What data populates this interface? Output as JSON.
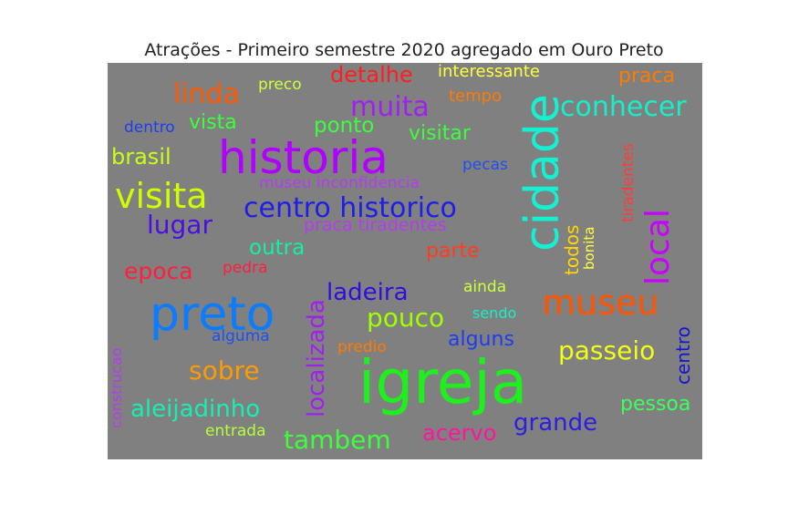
{
  "chart_data": {
    "type": "wordcloud",
    "title": "Atrações - Primeiro semestre 2020 agregado em Ouro Preto",
    "background_color": "#808080",
    "words": [
      {
        "text": "igreja",
        "color": "#1ef01e"
      },
      {
        "text": "historia",
        "color": "#b000ff"
      },
      {
        "text": "preto",
        "color": "#0a7cff"
      },
      {
        "text": "cidade",
        "color": "#14f0d2"
      },
      {
        "text": "visita",
        "color": "#ccff00"
      },
      {
        "text": "museu",
        "color": "#ff5500"
      },
      {
        "text": "centro historico",
        "color": "#1e1ee8"
      },
      {
        "text": "local",
        "color": "#c800ff"
      },
      {
        "text": "localizada",
        "color": "#a020f0"
      },
      {
        "text": "lugar",
        "color": "#4a10e0"
      },
      {
        "text": "linda",
        "color": "#ff5a00"
      },
      {
        "text": "muita",
        "color": "#a020f0"
      },
      {
        "text": "conhecer",
        "color": "#14f0c8"
      },
      {
        "text": "passeio",
        "color": "#f0ff14"
      },
      {
        "text": "tambem",
        "color": "#3cff3c"
      },
      {
        "text": "grande",
        "color": "#2b1ee0"
      },
      {
        "text": "sobre",
        "color": "#ff9a00"
      },
      {
        "text": "ladeira",
        "color": "#2b10e0"
      },
      {
        "text": "pouco",
        "color": "#a0ff00"
      },
      {
        "text": "aleijadinho",
        "color": "#14f0b4"
      },
      {
        "text": "detalhe",
        "color": "#ff1e1e"
      },
      {
        "text": "brasil",
        "color": "#c8ff14"
      },
      {
        "text": "epoca",
        "color": "#ff1e3c"
      },
      {
        "text": "acervo",
        "color": "#ff14a0"
      },
      {
        "text": "outra",
        "color": "#14f0a0"
      },
      {
        "text": "parte",
        "color": "#ff3c1e"
      },
      {
        "text": "ponto",
        "color": "#3cff3c"
      },
      {
        "text": "todos",
        "color": "#ffd700"
      },
      {
        "text": "pessoa",
        "color": "#3cff5a"
      },
      {
        "text": "centro",
        "color": "#1414d2"
      },
      {
        "text": "praca",
        "color": "#ff7a00"
      },
      {
        "text": "visitar",
        "color": "#3cff3c"
      },
      {
        "text": "alguns",
        "color": "#1e3cf0"
      },
      {
        "text": "vista",
        "color": "#3cff3c"
      },
      {
        "text": "tiradentes",
        "color": "#ff3c3c"
      },
      {
        "text": "interessante",
        "color": "#ffff3c"
      },
      {
        "text": "praca tiradentes",
        "color": "#b43cf0"
      },
      {
        "text": "museu inconfidencia",
        "color": "#b43cf0"
      },
      {
        "text": "tempo",
        "color": "#ff7a00"
      },
      {
        "text": "dentro",
        "color": "#1e3cf0"
      },
      {
        "text": "preco",
        "color": "#ccff3c"
      },
      {
        "text": "pecas",
        "color": "#1e50f0"
      },
      {
        "text": "pedra",
        "color": "#ff1e3c"
      },
      {
        "text": "ainda",
        "color": "#ccff3c"
      },
      {
        "text": "sendo",
        "color": "#14f0c8"
      },
      {
        "text": "alguma",
        "color": "#1e50f0"
      },
      {
        "text": "predio",
        "color": "#ff7a00"
      },
      {
        "text": "entrada",
        "color": "#b4ff3c"
      },
      {
        "text": "bonita",
        "color": "#ffff3c"
      },
      {
        "text": "construcao",
        "color": "#b43cf0"
      }
    ]
  }
}
